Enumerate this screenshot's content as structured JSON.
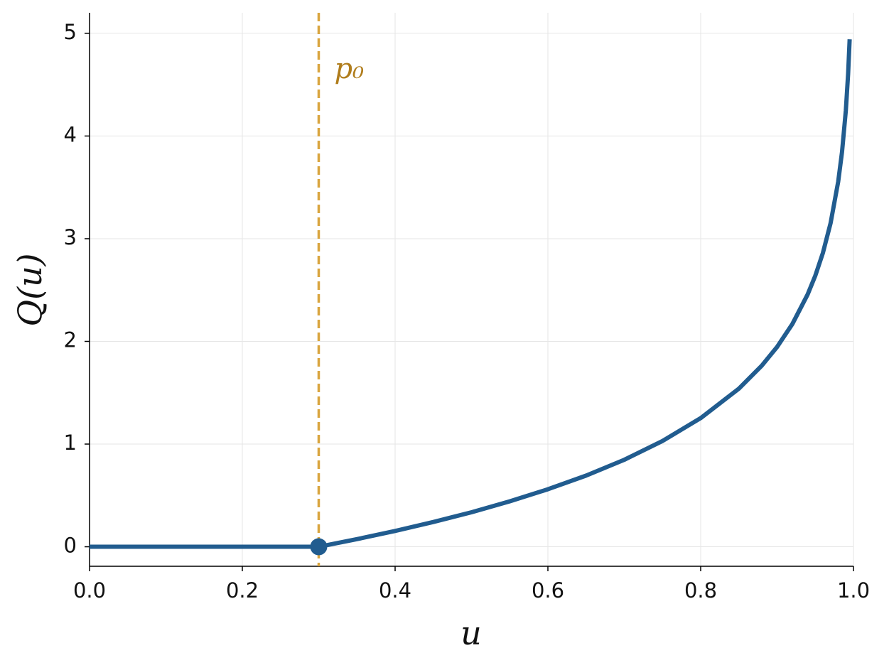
{
  "chart_data": {
    "type": "line",
    "xlabel": "u",
    "ylabel": "Q(u)",
    "x": [
      0,
      0.3,
      0.35,
      0.4,
      0.45,
      0.5,
      0.55,
      0.6,
      0.65,
      0.7,
      0.75,
      0.8,
      0.85,
      0.88,
      0.9,
      0.92,
      0.94,
      0.95,
      0.96,
      0.97,
      0.98,
      0.985,
      0.99,
      0.993,
      0.995
    ],
    "series": [
      {
        "color": "#215c8f",
        "values": [
          0,
          0,
          0.074,
          0.154,
          0.241,
          0.336,
          0.442,
          0.56,
          0.693,
          0.847,
          1.03,
          1.253,
          1.54,
          1.764,
          1.946,
          2.169,
          2.457,
          2.639,
          2.862,
          3.15,
          3.555,
          3.843,
          4.248,
          4.605,
          4.942
        ]
      }
    ],
    "marker": {
      "x": 0.3,
      "y": 0,
      "color": "#215c8f"
    },
    "vline": {
      "x": 0.3,
      "label": "p₀",
      "color": "#d9a53f",
      "label_color": "#b07d1c"
    },
    "xlim": [
      0,
      1
    ],
    "ylim": [
      -0.19,
      5.2
    ],
    "xticks": [
      {
        "value": 0,
        "label": "0.0"
      },
      {
        "value": 0.2,
        "label": "0.2"
      },
      {
        "value": 0.4,
        "label": "0.4"
      },
      {
        "value": 0.6,
        "label": "0.6"
      },
      {
        "value": 0.8,
        "label": "0.8"
      },
      {
        "value": 1,
        "label": "1.0"
      }
    ],
    "yticks": [
      0,
      1,
      2,
      3,
      4,
      5
    ],
    "grid": true
  }
}
